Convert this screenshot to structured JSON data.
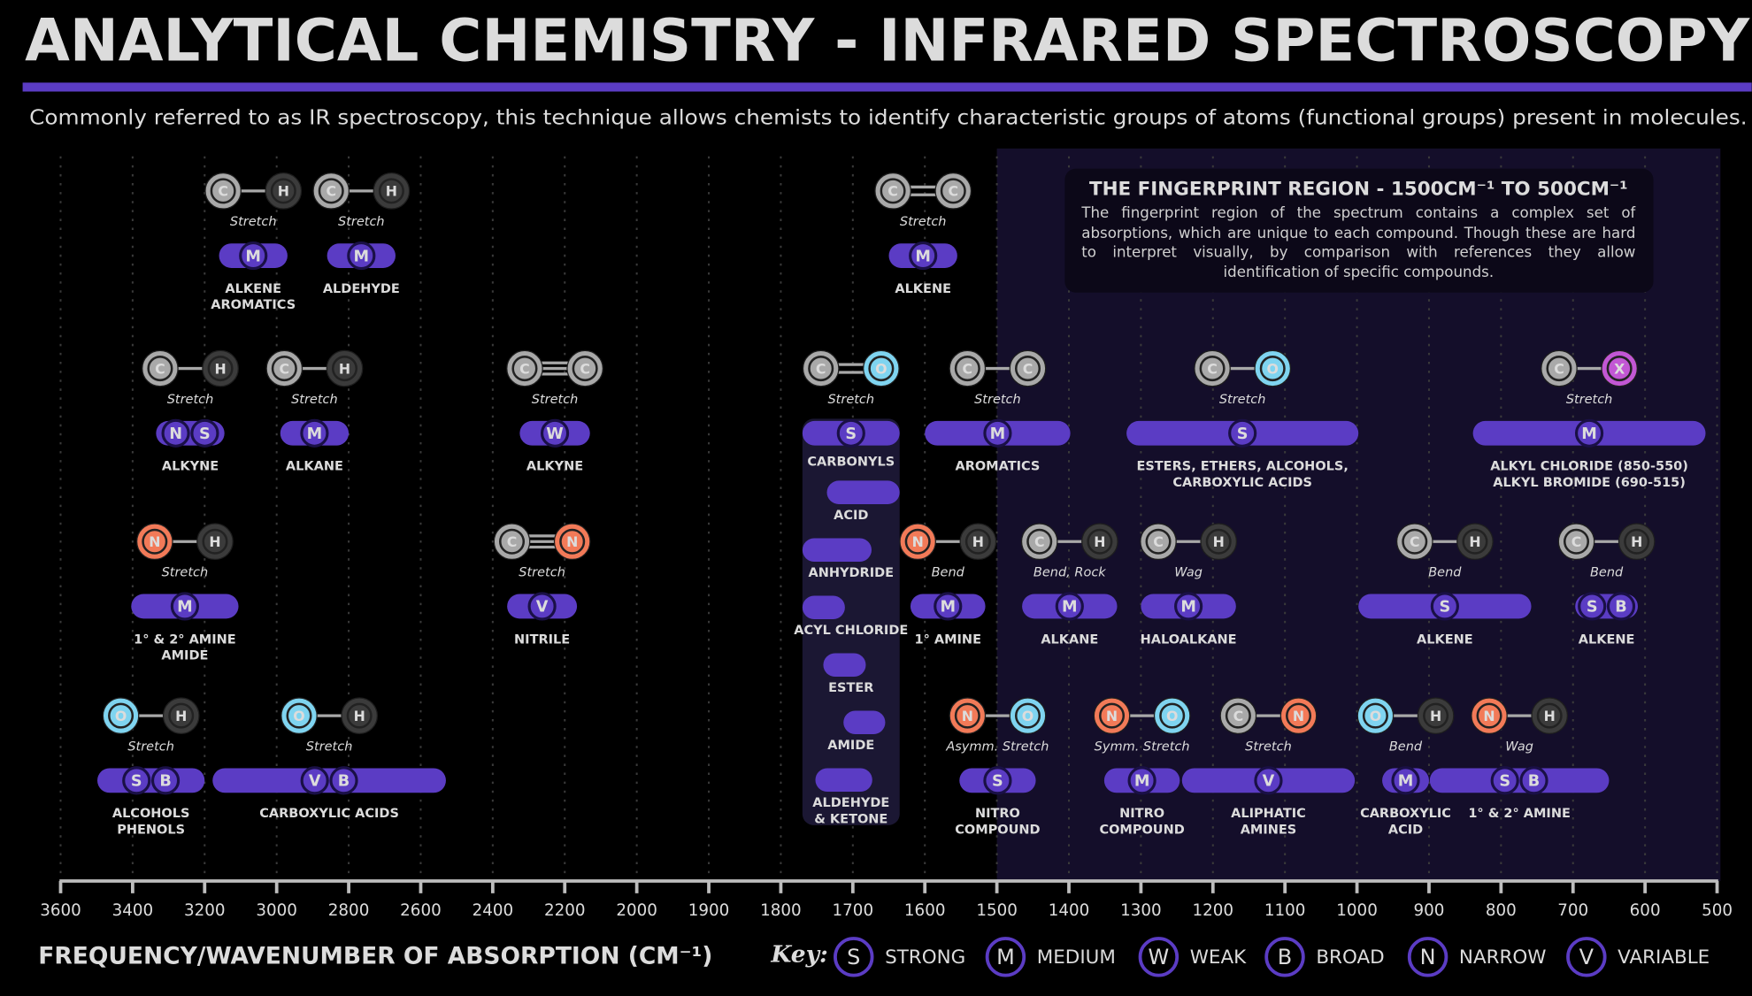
{
  "chart_data": {
    "type": "range",
    "title": "ANALYTICAL CHEMISTRY - INFRARED SPECTROSCOPY",
    "subtitle": "Commonly referred to as IR spectroscopy, this technique allows chemists to identify characteristic groups of atoms (functional groups) present in molecules.",
    "xlabel": "FREQUENCY/WAVENUMBER OF ABSORPTION (CM⁻¹)",
    "xlim": [
      3600,
      500
    ],
    "xticks": [
      3600,
      3400,
      3200,
      3000,
      2800,
      2600,
      2400,
      2200,
      2000,
      1900,
      1800,
      1700,
      1600,
      1500,
      1400,
      1300,
      1200,
      1100,
      1000,
      900,
      800,
      700,
      600,
      500
    ],
    "grid": true,
    "color": "#5b3cc4",
    "atom_colors": {
      "C": "#a9a9a9",
      "H": "#3b3b3b",
      "O": "#7fd4f0",
      "N": "#f27a58",
      "X": "#c257d4"
    },
    "fingerprint": {
      "title": "THE FINGERPRINT REGION - 1500CM⁻¹ TO 500CM⁻¹",
      "text": "The fingerprint region of the spectrum contains a complex set of absorptions, which are unique to each compound. Though these are hard to interpret visually, by comparison with references they allow identification of specific compounds.",
      "range": [
        1500,
        500
      ]
    },
    "rows": [
      [
        {
          "label": [
            "ALKENE",
            "AROMATICS"
          ],
          "atoms": [
            "C",
            "H"
          ],
          "bond": "single",
          "mode": "Stretch",
          "intensity": [
            "M"
          ],
          "range": [
            3160,
            2970
          ]
        },
        {
          "label": [
            "ALDEHYDE"
          ],
          "atoms": [
            "C",
            "H"
          ],
          "bond": "single",
          "mode": "Stretch",
          "intensity": [
            "M"
          ],
          "range": [
            2860,
            2670
          ]
        },
        {
          "label": [
            "ALKENE"
          ],
          "atoms": [
            "C",
            "C"
          ],
          "bond": "double",
          "mode": "Stretch",
          "intensity": [
            "M"
          ],
          "range": [
            1650,
            1555
          ]
        }
      ],
      [
        {
          "label": [
            "ALKYNE"
          ],
          "atoms": [
            "C",
            "H"
          ],
          "bond": "single",
          "mode": "Stretch",
          "intensity": [
            "N",
            "S"
          ],
          "range": [
            3335,
            3145
          ]
        },
        {
          "label": [
            "ALKANE"
          ],
          "atoms": [
            "C",
            "H"
          ],
          "bond": "single",
          "mode": "Stretch",
          "intensity": [
            "M"
          ],
          "range": [
            2990,
            2800
          ]
        },
        {
          "label": [
            "ALKYNE"
          ],
          "atoms": [
            "C",
            "C"
          ],
          "bond": "triple",
          "mode": "Stretch",
          "intensity": [
            "W"
          ],
          "range": [
            2325,
            2130
          ]
        },
        {
          "label": [
            "CARBONYLS"
          ],
          "atoms": [
            "C",
            "O"
          ],
          "bond": "double",
          "mode": "Stretch",
          "intensity": [
            "S"
          ],
          "range": [
            1770,
            1635
          ],
          "subtypes": [
            {
              "label": [
                "ACID"
              ],
              "range": [
                1736,
                1635
              ]
            },
            {
              "label": [
                "ANHYDRIDE"
              ],
              "range": [
                1770,
                1674
              ]
            },
            {
              "label": [
                "ACYL CHLORIDE"
              ],
              "range": [
                1770,
                1711
              ]
            },
            {
              "label": [
                "ESTER"
              ],
              "range": [
                1741,
                1682
              ]
            },
            {
              "label": [
                "AMIDE"
              ],
              "range": [
                1713,
                1655
              ]
            },
            {
              "label": [
                "ALDEHYDE",
                "& KETONE"
              ],
              "range": [
                1752,
                1673
              ]
            }
          ]
        },
        {
          "label": [
            "AROMATICS"
          ],
          "atoms": [
            "C",
            "C"
          ],
          "bond": "single",
          "mode": "Stretch",
          "intensity": [
            "M"
          ],
          "range": [
            1600,
            1398
          ]
        },
        {
          "label": [
            "ESTERS, ETHERS, ALCOHOLS,",
            "CARBOXYLIC ACIDS"
          ],
          "atoms": [
            "C",
            "O"
          ],
          "bond": "single",
          "mode": "Stretch",
          "intensity": [
            "S"
          ],
          "range": [
            1320,
            998
          ]
        },
        {
          "label": [
            "ALKYL CHLORIDE (850-550)",
            "ALKYL BROMIDE (690-515)"
          ],
          "atoms": [
            "C",
            "X"
          ],
          "bond": "single",
          "mode": "Stretch",
          "intensity": [
            "M"
          ],
          "range": [
            839,
            516
          ]
        }
      ],
      [
        {
          "label": [
            "1° & 2° AMINE",
            "AMIDE"
          ],
          "atoms": [
            "N",
            "H"
          ],
          "bond": "single",
          "mode": "Stretch",
          "intensity": [
            "M"
          ],
          "range": [
            3404,
            3106
          ]
        },
        {
          "label": [
            "NITRILE"
          ],
          "atoms": [
            "C",
            "N"
          ],
          "bond": "triple",
          "mode": "Stretch",
          "intensity": [
            "V"
          ],
          "range": [
            2360,
            2166
          ]
        },
        {
          "label": [
            "1° AMINE"
          ],
          "atoms": [
            "N",
            "H"
          ],
          "bond": "single",
          "mode": "Bend",
          "intensity": [
            "M"
          ],
          "range": [
            1620,
            1516
          ]
        },
        {
          "label": [
            "ALKANE"
          ],
          "atoms": [
            "C",
            "H"
          ],
          "bond": "single",
          "mode": "Bend, Rock",
          "intensity": [
            "M"
          ],
          "range": [
            1465,
            1333
          ]
        },
        {
          "label": [
            "HALOALKANE"
          ],
          "atoms": [
            "C",
            "H"
          ],
          "bond": "single",
          "mode": "Wag",
          "intensity": [
            "M"
          ],
          "range": [
            1300,
            1168
          ]
        },
        {
          "label": [
            "ALKENE"
          ],
          "atoms": [
            "C",
            "H"
          ],
          "bond": "single",
          "mode": "Bend",
          "intensity": [
            "S"
          ],
          "range": [
            998,
            758
          ]
        },
        {
          "label": [
            "ALKENE"
          ],
          "atoms": [
            "C",
            "H"
          ],
          "bond": "single",
          "mode": "Bend",
          "intensity": [
            "S",
            "B"
          ],
          "range": [
            697,
            610
          ]
        }
      ],
      [
        {
          "label": [
            "ALCOHOLS",
            "PHENOLS"
          ],
          "atoms": [
            "O",
            "H"
          ],
          "bond": "single",
          "mode": "Stretch",
          "intensity": [
            "S",
            "B"
          ],
          "range": [
            3498,
            3200
          ]
        },
        {
          "label": [
            "CARBOXYLIC ACIDS"
          ],
          "atoms": [
            "O",
            "H"
          ],
          "bond": "single",
          "mode": "Stretch",
          "intensity": [
            "V",
            "B"
          ],
          "range": [
            3178,
            2530
          ]
        },
        {
          "label": [
            "NITRO",
            "COMPOUND"
          ],
          "atoms": [
            "N",
            "O"
          ],
          "bond": "single",
          "mode": "Asymm. Stretch",
          "intensity": [
            "S"
          ],
          "range": [
            1552,
            1446
          ]
        },
        {
          "label": [
            "NITRO",
            "COMPOUND"
          ],
          "atoms": [
            "N",
            "O"
          ],
          "bond": "single",
          "mode": "Symm. Stretch",
          "intensity": [
            "M"
          ],
          "range": [
            1351,
            1246
          ]
        },
        {
          "label": [
            "ALIPHATIC",
            "AMINES"
          ],
          "atoms": [
            "C",
            "N"
          ],
          "bond": "single",
          "mode": "Stretch",
          "intensity": [
            "V"
          ],
          "range": [
            1243,
            1003
          ]
        },
        {
          "label": [
            "CARBOXYLIC",
            "ACID"
          ],
          "atoms": [
            "O",
            "H"
          ],
          "bond": "single",
          "mode": "Bend",
          "intensity": [
            "M"
          ],
          "range": [
            965,
            900
          ]
        },
        {
          "label": [
            "1° & 2° AMINE"
          ],
          "atoms": [
            "N",
            "H"
          ],
          "bond": "single",
          "mode": "Wag",
          "intensity": [
            "S",
            "B"
          ],
          "range": [
            899,
            650
          ]
        }
      ]
    ],
    "key": {
      "title": "Key:",
      "items": [
        {
          "letter": "S",
          "label": "STRONG"
        },
        {
          "letter": "M",
          "label": "MEDIUM"
        },
        {
          "letter": "W",
          "label": "WEAK"
        },
        {
          "letter": "B",
          "label": "BROAD"
        },
        {
          "letter": "N",
          "label": "NARROW"
        },
        {
          "letter": "V",
          "label": "VARIABLE"
        }
      ]
    }
  }
}
